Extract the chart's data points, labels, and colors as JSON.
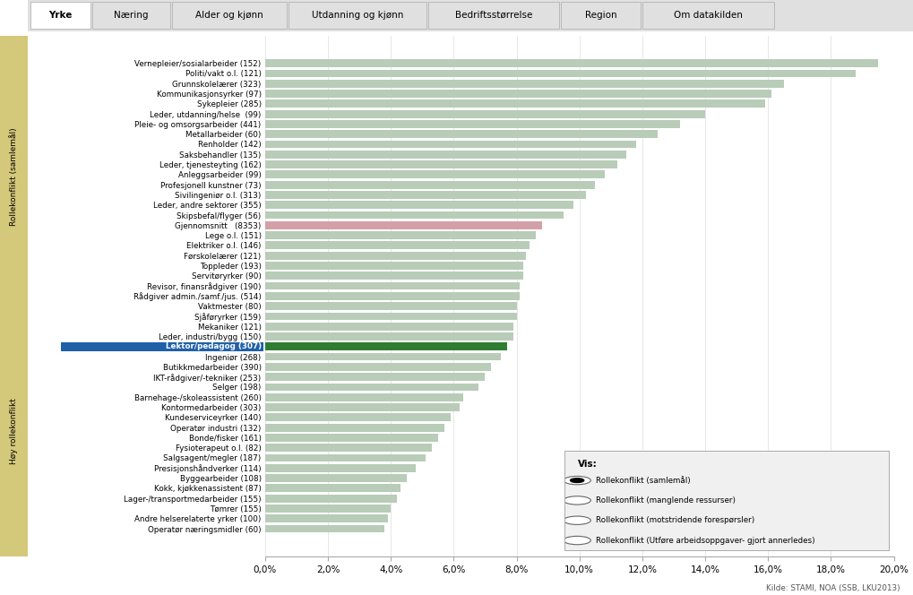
{
  "categories": [
    "Vernepleier/sosialarbeider (152)",
    "Politi/vakt o.l. (121)",
    "Grunnskolelærer (323)",
    "Kommunikasjonsyrker (97)",
    "Sykepleier (285)",
    "Leder, utdanning/helse  (99)",
    "Pleie- og omsorgsarbeider (441)",
    "Metallarbeider (60)",
    "Renholder (142)",
    "Saksbehandler (135)",
    "Leder, tjenesteyting (162)",
    "Anleggsarbeider (99)",
    "Profesjonell kunstner (73)",
    "Sivilingeniør o.l. (313)",
    "Leder, andre sektorer (355)",
    "Skipsbefal/flyger (56)",
    "Gjennomsnitt   (8353)",
    "Lege o.l. (151)",
    "Elektriker o.l. (146)",
    "Førskolelærer (121)",
    "Toppleder (193)",
    "Servitøryrker (90)",
    "Revisor, finansrådgiver (190)",
    "Rådgiver admin./samf./jus. (514)",
    "Vaktmester (80)",
    "Sjåføryrker (159)",
    "Mekaniker (121)",
    "Leder, industri/bygg (150)",
    "Lektor/pedagog (307)",
    "Ingeniør (268)",
    "Butikkmedarbeider (390)",
    "IKT-rådgiver/-tekniker (253)",
    "Selger (198)",
    "Barnehage-/skoleassistent (260)",
    "Kontormedarbeider (303)",
    "Kundeserviceyrker (140)",
    "Operatør industri (132)",
    "Bonde/fisker (161)",
    "Fysioterapeut o.l. (82)",
    "Salgsagent/megler (187)",
    "Presisjonshåndverker (114)",
    "Byggearbeider (108)",
    "Kokk, kjøkkenassistent (87)",
    "Lager-/transportmedarbeider (155)",
    "Tømrer (155)",
    "Andre helserelaterte yrker (100)",
    "Operatør næringsmidler (60)"
  ],
  "values": [
    19.5,
    18.8,
    16.5,
    16.1,
    15.9,
    14.0,
    13.2,
    12.5,
    11.8,
    11.5,
    11.2,
    10.8,
    10.5,
    10.2,
    9.8,
    9.5,
    8.8,
    8.6,
    8.4,
    8.3,
    8.2,
    8.2,
    8.1,
    8.1,
    8.0,
    8.0,
    7.9,
    7.9,
    7.7,
    7.5,
    7.2,
    7.0,
    6.8,
    6.3,
    6.2,
    5.9,
    5.7,
    5.5,
    5.3,
    5.1,
    4.8,
    4.5,
    4.3,
    4.2,
    4.0,
    3.9,
    3.8
  ],
  "highlight_index": 28,
  "highlight_bar_color": "#2e7d32",
  "highlight_label_bg": "#2060a8",
  "average_index": 16,
  "average_bar_color": "#d4a0a8",
  "normal_bar_color": "#b8ccb8",
  "tab_labels": [
    "Yrke",
    "Næring",
    "Alder og kjønn",
    "Utdanning og kjønn",
    "Bedriftsstørrelse",
    "Region",
    "Om datakilden"
  ],
  "active_tab": 0,
  "ylabel_main": "Rollekonflikt (samlemål)",
  "ylabel_sub": "Høy rollekonflikt",
  "legend_title": "Vis:",
  "legend_items": [
    "Rollekonflikt (samlemål)",
    "Rollekonflikt (manglende ressurser)",
    "Rollekonflikt (motstridende forespørsler)",
    "Rollekonflikt (Utføre arbeidsoppgaver- gjort annerledes)"
  ],
  "source_text": "Kilde: STAMI, NOA (SSB, LKU2013)",
  "xlim_max": 20.0,
  "xtick_vals": [
    0,
    2,
    4,
    6,
    8,
    10,
    12,
    14,
    16,
    18,
    20
  ],
  "xtick_labels": [
    "0,0%",
    "2,0%",
    "4,0%",
    "6,0%",
    "8,0%",
    "10,0%",
    "12,0%",
    "14,0%",
    "16,0%",
    "18,0%",
    "20,0%"
  ],
  "sidebar_color": "#d4c87a",
  "tab_bg_color": "#e0e0e0",
  "active_tab_bg": "#ffffff",
  "chart_bg": "#ffffff"
}
